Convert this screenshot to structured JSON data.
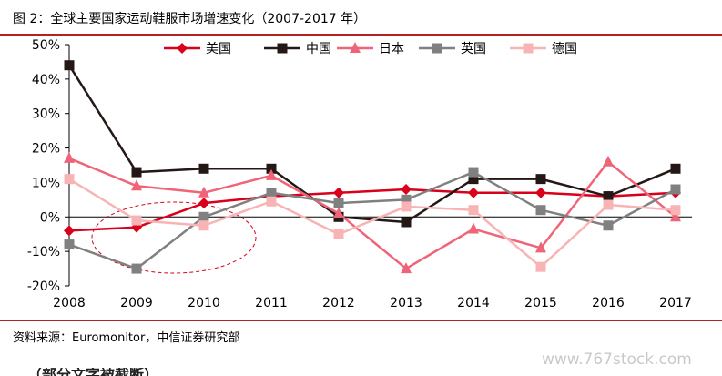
{
  "figure_title": "图 2：全球主要国家运动鞋服市场增速变化（2007-2017 年）",
  "source": "资料来源：Euromonitor，中信证券研究部",
  "watermark": "www.767stock.com",
  "cut_text": "（部分文字被截断）",
  "chart_data": {
    "type": "line",
    "x": [
      "2008",
      "2009",
      "2010",
      "2011",
      "2012",
      "2013",
      "2014",
      "2015",
      "2016",
      "2017"
    ],
    "y_ticks": [
      "50%",
      "40%",
      "30%",
      "20%",
      "10%",
      "0%",
      "-10%",
      "-20%"
    ],
    "ylim": [
      -20,
      50
    ],
    "legend_position": "top",
    "series": [
      {
        "name": "美国",
        "color": "#d9001b",
        "marker": "diamond",
        "values": [
          -4,
          -3,
          4,
          6,
          7,
          8,
          7,
          7,
          6,
          7
        ]
      },
      {
        "name": "中国",
        "color": "#231815",
        "marker": "square",
        "values": [
          44,
          13,
          14,
          14,
          0,
          -1.5,
          11,
          11,
          6,
          14
        ]
      },
      {
        "name": "日本",
        "color": "#f06478",
        "marker": "triangle",
        "values": [
          17,
          9,
          7,
          12,
          1,
          -15,
          -3.5,
          -9,
          16,
          0
        ]
      },
      {
        "name": "英国",
        "color": "#808080",
        "marker": "square",
        "values": [
          -8,
          -15,
          0,
          7,
          4,
          5,
          13,
          2,
          -2.5,
          8
        ]
      },
      {
        "name": "德国",
        "color": "#f8b4b4",
        "marker": "square",
        "values": [
          11,
          -1,
          -2.5,
          4.5,
          -5,
          3,
          2,
          -14.5,
          3.5,
          2
        ]
      }
    ],
    "annotation": {
      "type": "dashed-ellipse",
      "color": "#d9001b"
    }
  }
}
